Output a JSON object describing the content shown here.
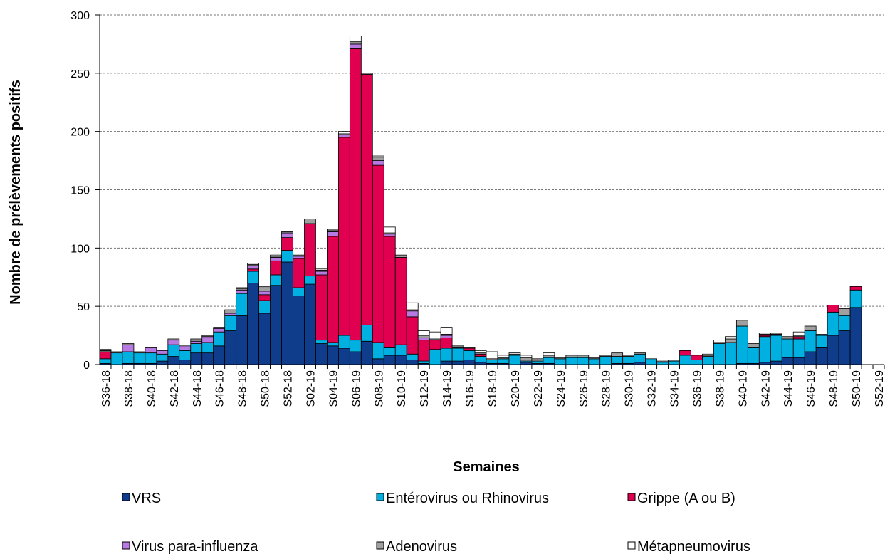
{
  "chart_data": {
    "type": "stacked-bar",
    "y_label": "Nombre de prélèvements positifs",
    "x_label": "Semaines",
    "categories": [
      "S36-18",
      null,
      "S38-18",
      null,
      "S40-18",
      null,
      "S42-18",
      null,
      "S44-18",
      null,
      "S46-18",
      null,
      "S48-18",
      null,
      "S50-18",
      null,
      "S52-18",
      null,
      "S02-19",
      null,
      "S04-19",
      null,
      "S06-19",
      null,
      "S08-19",
      null,
      "S10-19",
      null,
      "S12-19",
      null,
      "S14-19",
      null,
      "S16-19",
      null,
      "S18-19",
      null,
      "S20-19",
      null,
      "S22-19",
      null,
      "S24-19",
      null,
      "S26-19",
      null,
      "S28-19",
      null,
      "S30-19",
      null,
      "S32-19",
      null,
      "S34-19",
      null,
      "S36-19",
      null,
      "S38-19",
      null,
      "S40-19",
      null,
      "S42-19",
      null,
      "S44-19",
      null,
      "S46-19",
      null,
      "S48-19",
      null,
      "S50-19",
      null,
      "S52-19"
    ],
    "series": [
      {
        "name": "VRS",
        "color": "#0f3d8c",
        "values": [
          1,
          0,
          1,
          1,
          1,
          3,
          7,
          4,
          10,
          10,
          16,
          29,
          42,
          70,
          44,
          68,
          88,
          59,
          69,
          18,
          16,
          14,
          11,
          20,
          5,
          8,
          8,
          4,
          1,
          0,
          3,
          3,
          4,
          2,
          1,
          1,
          0,
          2,
          1,
          1,
          0,
          0,
          0,
          0,
          0,
          1,
          1,
          2,
          0,
          0,
          0,
          0,
          0,
          0,
          0,
          0,
          1,
          1,
          2,
          3,
          6,
          6,
          11,
          15,
          25,
          29,
          49,
          null,
          null
        ]
      },
      {
        "name": "Entérovirus ou Rhinovirus",
        "color": "#00b0e0",
        "values": [
          4,
          10,
          10,
          9,
          9,
          6,
          10,
          8,
          8,
          9,
          12,
          13,
          19,
          10,
          11,
          9,
          10,
          7,
          7,
          3,
          3,
          11,
          10,
          14,
          14,
          7,
          9,
          5,
          2,
          13,
          11,
          11,
          8,
          5,
          3,
          4,
          8,
          1,
          2,
          5,
          5,
          6,
          6,
          5,
          7,
          6,
          6,
          7,
          5,
          2,
          3,
          8,
          4,
          7,
          18,
          19,
          32,
          14,
          22,
          22,
          16,
          16,
          18,
          10,
          20,
          13,
          15,
          null,
          null
        ]
      },
      {
        "name": "Grippe (A ou B)",
        "color": "#e0004f",
        "values": [
          6,
          0,
          0,
          0,
          0,
          0,
          0,
          0,
          0,
          0,
          0,
          0,
          0,
          2,
          5,
          12,
          11,
          25,
          45,
          56,
          91,
          170,
          250,
          215,
          152,
          95,
          75,
          32,
          18,
          8,
          9,
          1,
          2,
          2,
          0,
          0,
          0,
          0,
          0,
          0,
          0,
          0,
          0,
          0,
          0,
          0,
          0,
          0,
          0,
          0,
          0,
          4,
          4,
          0,
          0,
          0,
          0,
          0,
          1,
          1,
          0,
          2,
          0,
          0,
          6,
          0,
          3,
          null,
          null
        ]
      },
      {
        "name": "Virus para-influenza",
        "color": "#b77ae0",
        "values": [
          0,
          0,
          6,
          0,
          5,
          3,
          4,
          4,
          2,
          5,
          3,
          2,
          3,
          3,
          3,
          3,
          4,
          2,
          0,
          3,
          4,
          2,
          4,
          0,
          4,
          2,
          0,
          5,
          2,
          0,
          2,
          0,
          0,
          0,
          0,
          0,
          0,
          0,
          0,
          0,
          0,
          0,
          0,
          0,
          0,
          0,
          0,
          0,
          0,
          0,
          0,
          0,
          0,
          0,
          0,
          0,
          0,
          0,
          0,
          0,
          0,
          0,
          0,
          0,
          0,
          0,
          0,
          null,
          null
        ]
      },
      {
        "name": "Adenovirus",
        "color": "#a0a0a0",
        "values": [
          1,
          1,
          1,
          1,
          0,
          0,
          1,
          0,
          2,
          1,
          1,
          3,
          1,
          1,
          3,
          1,
          1,
          1,
          4,
          1,
          1,
          1,
          2,
          1,
          3,
          1,
          2,
          1,
          2,
          1,
          1,
          1,
          1,
          1,
          1,
          1,
          1,
          3,
          2,
          2,
          1,
          2,
          2,
          1,
          1,
          3,
          1,
          1,
          0,
          1,
          1,
          0,
          0,
          1,
          1,
          3,
          5,
          3,
          1,
          1,
          2,
          1,
          4,
          1,
          0,
          6,
          0,
          null,
          null
        ]
      },
      {
        "name": "Métapneumovirus",
        "color": "#ffffff",
        "values": [
          1,
          0,
          0,
          0,
          0,
          0,
          0,
          0,
          0,
          0,
          0,
          0,
          1,
          1,
          1,
          1,
          0,
          1,
          0,
          1,
          1,
          2,
          5,
          0,
          1,
          5,
          0,
          6,
          4,
          6,
          6,
          0,
          0,
          2,
          6,
          2,
          1,
          2,
          0,
          2,
          0,
          0,
          0,
          0,
          0,
          0,
          0,
          0,
          0,
          0,
          0,
          0,
          0,
          1,
          2,
          2,
          0,
          0,
          1,
          0,
          0,
          3,
          0,
          0,
          0,
          0,
          0,
          null,
          null
        ]
      }
    ],
    "ylim": [
      0,
      300
    ],
    "yticks": [
      0,
      50,
      100,
      150,
      200,
      250,
      300
    ],
    "grid": true
  }
}
